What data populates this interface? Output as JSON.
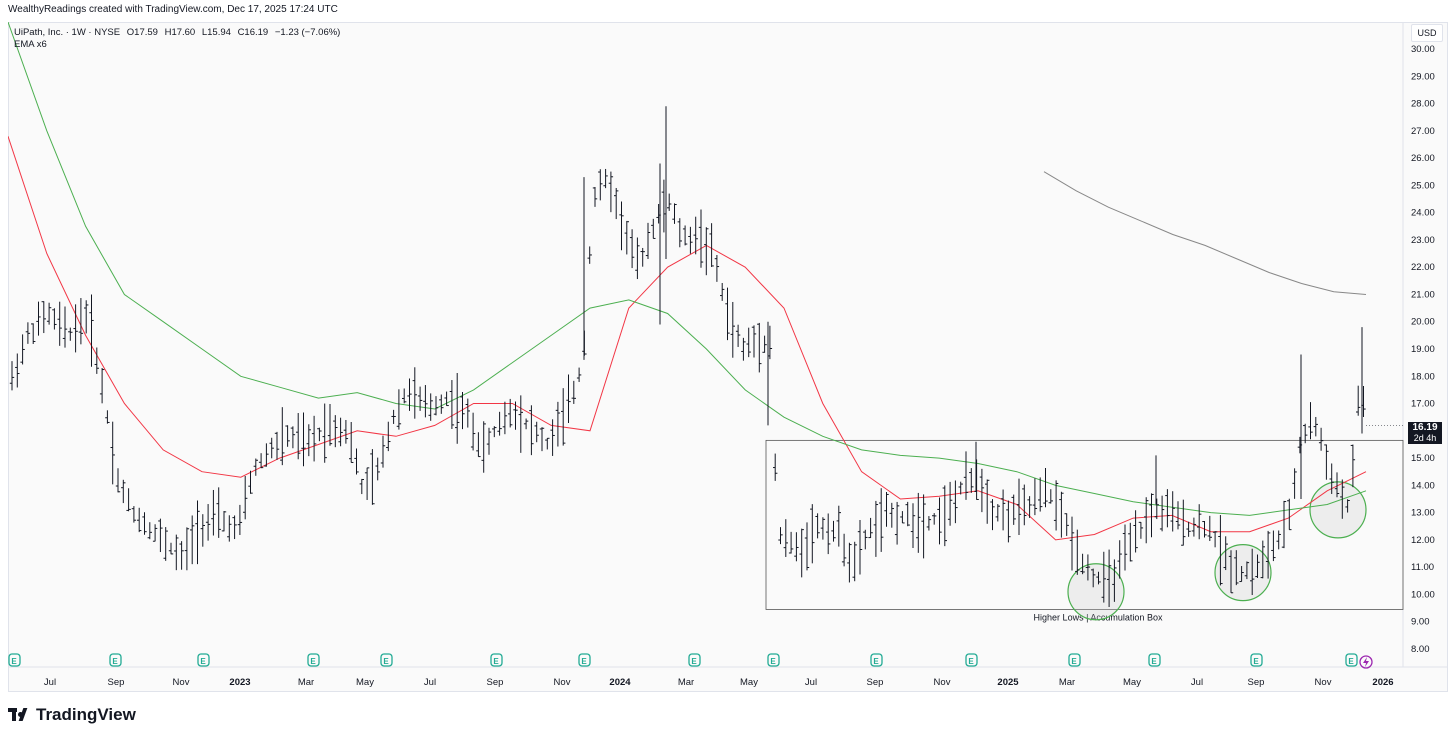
{
  "attribution": "WealthyReadings created with TradingView.com, Dec 17, 2025 17:24 UTC",
  "legend": {
    "symbol": "UiPath, Inc. · 1W · NYSE",
    "open": "O17.59",
    "high": "H17.60",
    "low": "L15.94",
    "close": "C16.19",
    "change": "−1.23 (−7.06%)",
    "indicator": "EMA x6"
  },
  "currency": "USD",
  "last_price": {
    "value": "16.19",
    "countdown": "2d 4h"
  },
  "brand": "TradingView",
  "chart_data": {
    "type": "bar",
    "title": "",
    "ylabel": "USD",
    "ylim": [
      7.5,
      31
    ],
    "y_ticks": [
      "30.00",
      "29.00",
      "28.00",
      "27.00",
      "26.00",
      "25.00",
      "24.00",
      "23.00",
      "22.00",
      "21.00",
      "20.00",
      "19.00",
      "18.00",
      "17.00",
      "16.00",
      "15.00",
      "14.00",
      "13.00",
      "12.00",
      "11.00",
      "10.00",
      "9.00",
      "8.00"
    ],
    "x_ticks": [
      "Jul",
      "Sep",
      "Nov",
      "2023",
      "Mar",
      "May",
      "Jul",
      "Sep",
      "Nov",
      "2024",
      "Mar",
      "May",
      "Jul",
      "Sep",
      "Nov",
      "2025",
      "Mar",
      "May",
      "Jul",
      "Sep",
      "Nov",
      "2026"
    ],
    "bold_x_ticks": [
      "2023",
      "2024",
      "2025",
      "2026"
    ],
    "earnings_marker_label": "E",
    "series": [
      {
        "name": "EMA (red)",
        "color": "#f23645",
        "values": [
          26.8,
          22.5,
          19.5,
          17.0,
          15.3,
          14.5,
          14.3,
          15.0,
          15.5,
          16.0,
          15.8,
          16.2,
          17.0,
          17.0,
          16.2,
          16.0,
          20.5,
          22.0,
          22.8,
          22.0,
          20.5,
          17.0,
          14.5,
          13.5,
          13.6,
          13.8,
          13.3,
          12.0,
          12.2,
          12.8,
          12.9,
          12.3,
          12.3,
          12.8,
          13.8,
          14.5
        ]
      },
      {
        "name": "EMA (green)",
        "color": "#4caf50",
        "values": [
          31.8,
          27.0,
          23.5,
          21.0,
          20.0,
          19.0,
          18.0,
          17.6,
          17.2,
          17.4,
          17.0,
          16.8,
          17.5,
          18.5,
          19.5,
          20.5,
          20.8,
          20.3,
          19.0,
          17.5,
          16.5,
          15.8,
          15.3,
          15.1,
          15.0,
          14.8,
          14.5,
          14.0,
          13.7,
          13.4,
          13.2,
          13.0,
          12.9,
          13.1,
          13.3,
          13.8
        ]
      },
      {
        "name": "EMA (gray)",
        "color": "#888888",
        "values": [
          25.5,
          24.8,
          24.2,
          23.7,
          23.2,
          22.8,
          22.3,
          21.8,
          21.4,
          21.1,
          21.0
        ]
      }
    ],
    "accumulation_box": {
      "from": "2024-05",
      "to": "2025-12",
      "low": 9.45,
      "high": 15.65,
      "label": "Higher Lows | Accumulation Box"
    },
    "highlighted_lows": [
      10.1,
      10.8,
      13.1
    ]
  }
}
